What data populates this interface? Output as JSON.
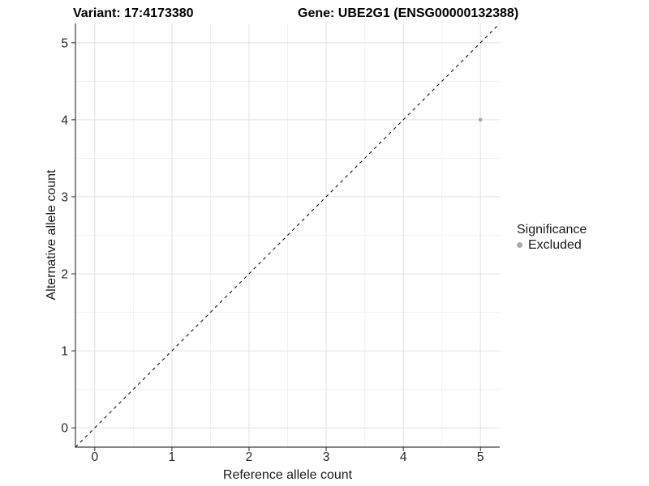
{
  "figure": {
    "background": "#ffffff"
  },
  "chart_data": {
    "type": "scatter",
    "titles": {
      "variant": "Variant: 17:4173380",
      "gene": "Gene: UBE2G1 (ENSG00000132388)"
    },
    "xlabel": "Reference allele count",
    "ylabel": "Alternative allele count",
    "x_ticks": [
      0,
      1,
      2,
      3,
      4,
      5
    ],
    "y_ticks": [
      0,
      1,
      2,
      3,
      4,
      5
    ],
    "x_minor_ticks": [
      0.5,
      1.5,
      2.5,
      3.5,
      4.5
    ],
    "y_minor_ticks": [
      0.5,
      1.5,
      2.5,
      3.5,
      4.5
    ],
    "xlim": [
      -0.25,
      5.25
    ],
    "ylim": [
      -0.25,
      5.25
    ],
    "grid": {
      "major_color": "#e4e4e4",
      "minor_color": "#efefef",
      "background": "#ffffff"
    },
    "axis": {
      "line_color": "#3c3c3c",
      "tick_color": "#3c3c3c",
      "tick_label_color": "#262626"
    },
    "reference_line": {
      "slope": 1,
      "intercept": 0,
      "style": "dashed",
      "color": "#111111"
    },
    "series": [
      {
        "name": "Excluded",
        "color": "#ababab",
        "points": [
          {
            "x": 5,
            "y": 4
          }
        ]
      }
    ],
    "legend": {
      "title": "Significance",
      "position": "right",
      "items": [
        {
          "label": "Excluded",
          "color": "#ababab"
        }
      ]
    }
  }
}
